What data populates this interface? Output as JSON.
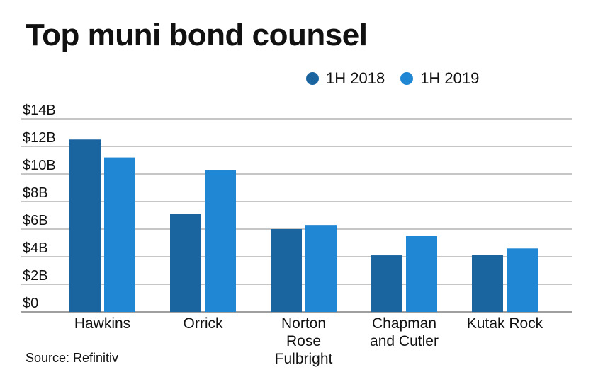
{
  "title": "Top muni bond counsel",
  "source": "Source: Refinitiv",
  "colors": {
    "series_2018": "#1a64a0",
    "series_2019": "#1f87d4",
    "grid": "#666666"
  },
  "chart_data": {
    "type": "bar",
    "title": "Top muni bond counsel",
    "categories": [
      [
        "Hawkins"
      ],
      [
        "Orrick"
      ],
      [
        "Norton",
        "Rose",
        "Fulbright"
      ],
      [
        "Chapman",
        "and Cutler"
      ],
      [
        "Kutak Rock"
      ]
    ],
    "series": [
      {
        "name": "1H 2018",
        "values": [
          12.5,
          7.1,
          6.0,
          4.1,
          4.15
        ]
      },
      {
        "name": "1H 2019",
        "values": [
          11.2,
          10.3,
          6.3,
          5.5,
          4.6
        ]
      }
    ],
    "yticks": [
      "$0",
      "$2B",
      "$4B",
      "$6B",
      "$8B",
      "$10B",
      "$12B",
      "$14B"
    ],
    "ylim": [
      0,
      14
    ],
    "grid": true,
    "legend_position": "top-right"
  }
}
